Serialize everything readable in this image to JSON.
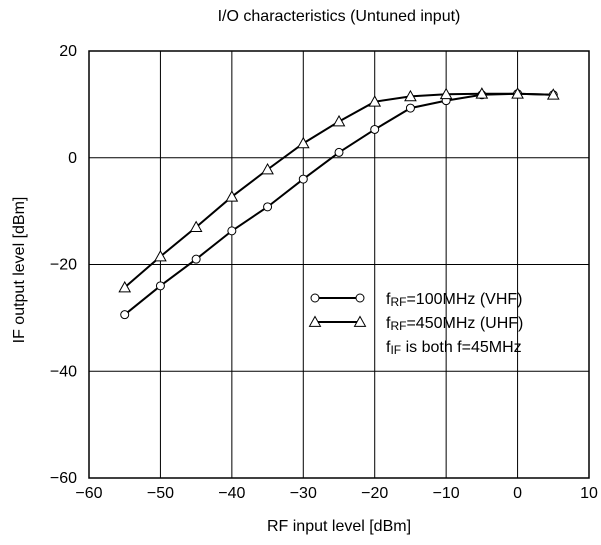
{
  "chart_data": {
    "type": "line",
    "title": "I/O characteristics (Untuned input)",
    "xlabel": "RF input level [dBm]",
    "ylabel": "IF output level [dBm]",
    "xlim": [
      -60,
      10
    ],
    "ylim": [
      -60,
      20
    ],
    "xticks": [
      -60,
      -50,
      -40,
      -30,
      -20,
      -10,
      0,
      10
    ],
    "yticks": [
      -60,
      -40,
      -20,
      0,
      20
    ],
    "xtick_labels": [
      "−60",
      "−50",
      "−40",
      "−30",
      "−20",
      "−10",
      "0",
      "10"
    ],
    "ytick_labels": [
      "−60",
      "−40",
      "−20",
      "0",
      "20"
    ],
    "grid": true,
    "legend_position": "right-center",
    "series": [
      {
        "marker": "circle",
        "sub": "RF",
        "rest": "=100MHz (VHF)",
        "x": [
          -55,
          -50,
          -45,
          -40,
          -35,
          -30,
          -25,
          -20,
          -15,
          -10,
          -5,
          0,
          5
        ],
        "y": [
          -29.4,
          -24.0,
          -19.0,
          -13.7,
          -9.2,
          -4.0,
          1.0,
          5.3,
          9.3,
          10.7,
          11.8,
          12.0,
          11.8
        ]
      },
      {
        "marker": "triangle",
        "sub": "RF",
        "rest": "=450MHz (UHF)",
        "x": [
          -55,
          -50,
          -45,
          -40,
          -35,
          -30,
          -25,
          -20,
          -15,
          -10,
          -5,
          0,
          5
        ],
        "y": [
          -24.3,
          -18.5,
          -13.0,
          -7.3,
          -2.2,
          2.7,
          6.8,
          10.5,
          11.5,
          11.9,
          12.0,
          12.0,
          11.8
        ]
      }
    ],
    "legend_note": {
      "sub": "IF",
      "rest": " is both f=45MHz"
    }
  }
}
